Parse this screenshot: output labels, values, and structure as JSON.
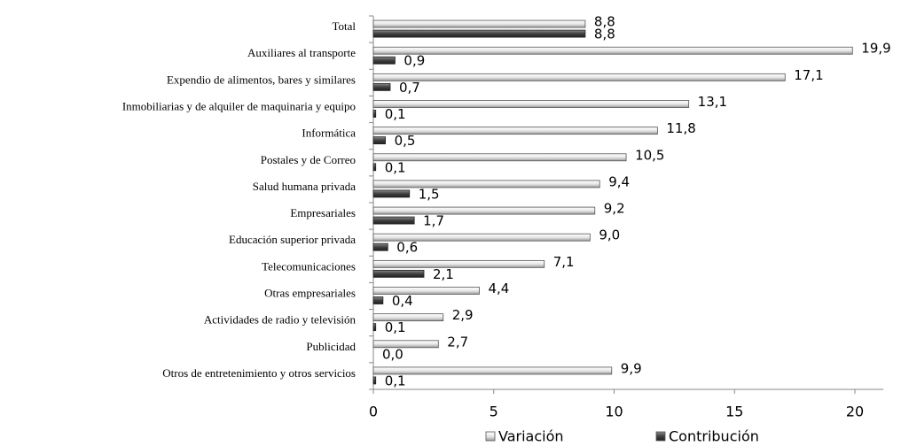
{
  "chart_data": {
    "type": "bar",
    "orientation": "horizontal",
    "categories": [
      "Total",
      "Auxiliares al transporte",
      "Expendio de alimentos, bares y similares",
      "Inmobiliarias y de alquiler de maquinaria y equipo",
      "Informática",
      "Postales y de Correo",
      "Salud humana privada",
      "Empresariales",
      "Educación superior privada",
      "Telecomunicaciones",
      "Otras empresariales",
      "Actividades de radio y televisión",
      "Publicidad",
      "Otros de entretenimiento y otros servicios"
    ],
    "series": [
      {
        "name": "Variación",
        "color": "#d9d9d9",
        "values": [
          8.8,
          19.9,
          17.1,
          13.1,
          11.8,
          10.5,
          9.4,
          9.2,
          9.0,
          7.1,
          4.4,
          2.9,
          2.7,
          9.9
        ],
        "value_labels": [
          "8,8",
          "19,9",
          "17,1",
          "13,1",
          "11,8",
          "10,5",
          "9,4",
          "9,2",
          "9,0",
          "7,1",
          "4,4",
          "2,9",
          "2,7",
          "9,9"
        ]
      },
      {
        "name": "Contribución",
        "color": "#404040",
        "values": [
          8.8,
          0.9,
          0.7,
          0.1,
          0.5,
          0.1,
          1.5,
          1.7,
          0.6,
          2.1,
          0.4,
          0.1,
          0.0,
          0.1
        ],
        "value_labels": [
          "8,8",
          "0,9",
          "0,7",
          "0,1",
          "0,5",
          "0,1",
          "1,5",
          "1,7",
          "0,6",
          "2,1",
          "0,4",
          "0,1",
          "0,0",
          "0,1"
        ]
      }
    ],
    "xlim": [
      0,
      21
    ],
    "xticks": [
      0,
      5,
      10,
      15,
      20
    ],
    "legend": "bottom"
  }
}
